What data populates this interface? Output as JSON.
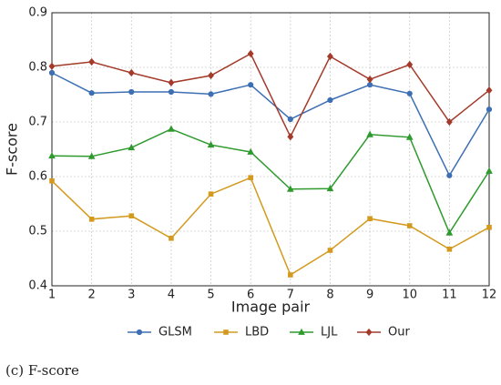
{
  "chart_data": {
    "type": "line",
    "x_label": "Image pair",
    "y_label": "F-score",
    "x": [
      1,
      2,
      3,
      4,
      5,
      6,
      7,
      8,
      9,
      10,
      11,
      12
    ],
    "xlim": [
      1,
      12
    ],
    "xticks": [
      1,
      2,
      3,
      4,
      5,
      6,
      7,
      8,
      9,
      10,
      11,
      12
    ],
    "ylim": [
      0.4,
      0.9
    ],
    "yticks": [
      0.4,
      0.5,
      0.6,
      0.7,
      0.8,
      0.9
    ],
    "grid": true,
    "legend": "bottom",
    "series": [
      {
        "name": "GLSM",
        "color": "#3d6fb4",
        "marker": "circle",
        "values": [
          0.79,
          0.753,
          0.755,
          0.755,
          0.751,
          0.768,
          0.705,
          0.74,
          0.768,
          0.752,
          0.602,
          0.723
        ]
      },
      {
        "name": "LBD",
        "color": "#d39a1e",
        "marker": "square",
        "values": [
          0.592,
          0.522,
          0.528,
          0.487,
          0.568,
          0.598,
          0.42,
          0.465,
          0.523,
          0.51,
          0.467,
          0.507
        ]
      },
      {
        "name": "LJL",
        "color": "#2e9a2e",
        "marker": "triangle",
        "values": [
          0.638,
          0.637,
          0.653,
          0.687,
          0.658,
          0.645,
          0.577,
          0.578,
          0.677,
          0.672,
          0.497,
          0.61
        ]
      },
      {
        "name": "Our",
        "color": "#a33a2a",
        "marker": "diamond",
        "values": [
          0.802,
          0.81,
          0.79,
          0.772,
          0.785,
          0.825,
          0.673,
          0.82,
          0.778,
          0.805,
          0.7,
          0.758
        ]
      }
    ],
    "caption": "(c) F-score"
  }
}
